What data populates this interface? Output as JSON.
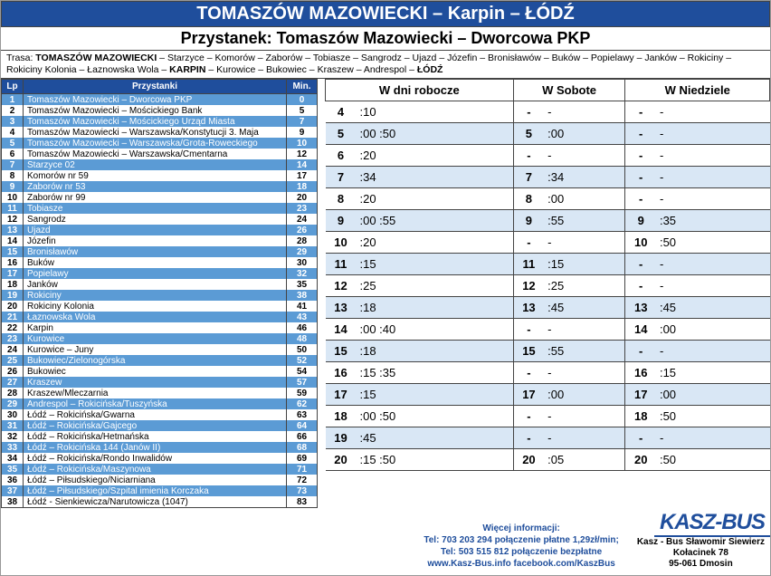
{
  "header": "TOMASZÓW MAZOWIECKI – Karpin – ŁÓDŹ",
  "stopName": "Przystanek: Tomaszów Mazowiecki – Dworcowa PKP",
  "routePrefix": "Trasa: ",
  "routeHtml": "<b>TOMASZÓW MAZOWIECKI</b> – Starzyce – Komorów – Zaborów – Tobiasze – Sangrodz – Ujazd – Józefin – Bronisławów – Buków – Popielawy – Janków – Rokiciny – Rokiciny Kolonia – Łaznowska Wola – <b>KARPIN</b> – Kurowice – Bukowiec – Kraszew – Andrespol – <b>ŁÓDŹ</b>",
  "stopsHeaders": {
    "lp": "Lp",
    "name": "Przystanki",
    "min": "Min."
  },
  "stops": [
    {
      "lp": 1,
      "name": "Tomaszów Mazowiecki – Dworcowa PKP",
      "min": 0
    },
    {
      "lp": 2,
      "name": "Tomaszów Mazowiecki – Mościckiego Bank",
      "min": 5
    },
    {
      "lp": 3,
      "name": "Tomaszów Mazowiecki – Mościckiego Urząd Miasta",
      "min": 7
    },
    {
      "lp": 4,
      "name": "Tomaszów Mazowiecki – Warszawska/Konstytucji 3. Maja",
      "min": 9
    },
    {
      "lp": 5,
      "name": "Tomaszów Mazowiecki – Warszawska/Grota-Roweckiego",
      "min": 10
    },
    {
      "lp": 6,
      "name": "Tomaszów Mazowiecki – Warszawska/Cmentarna",
      "min": 12
    },
    {
      "lp": 7,
      "name": "Starzyce 02",
      "min": 14
    },
    {
      "lp": 8,
      "name": "Komorów nr 59",
      "min": 17
    },
    {
      "lp": 9,
      "name": "Zaborów nr 53",
      "min": 18
    },
    {
      "lp": 10,
      "name": "Zaborów nr 99",
      "min": 20
    },
    {
      "lp": 11,
      "name": "Tobiasze",
      "min": 23
    },
    {
      "lp": 12,
      "name": "Sangrodz",
      "min": 24
    },
    {
      "lp": 13,
      "name": "Ujazd",
      "min": 26
    },
    {
      "lp": 14,
      "name": "Józefin",
      "min": 28
    },
    {
      "lp": 15,
      "name": "Bronisławów",
      "min": 29
    },
    {
      "lp": 16,
      "name": "Buków",
      "min": 30
    },
    {
      "lp": 17,
      "name": "Popielawy",
      "min": 32
    },
    {
      "lp": 18,
      "name": "Janków",
      "min": 35
    },
    {
      "lp": 19,
      "name": "Rokiciny",
      "min": 38
    },
    {
      "lp": 20,
      "name": "Rokiciny Kolonia",
      "min": 41
    },
    {
      "lp": 21,
      "name": "Łaznowska Wola",
      "min": 43
    },
    {
      "lp": 22,
      "name": "Karpin",
      "min": 46
    },
    {
      "lp": 23,
      "name": "Kurowice",
      "min": 48
    },
    {
      "lp": 24,
      "name": "Kurowice – Juny",
      "min": 50
    },
    {
      "lp": 25,
      "name": "Bukowiec/Zielonogórska",
      "min": 52
    },
    {
      "lp": 26,
      "name": "Bukowiec",
      "min": 54
    },
    {
      "lp": 27,
      "name": "Kraszew",
      "min": 57
    },
    {
      "lp": 28,
      "name": "Kraszew/Mleczarnia",
      "min": 59
    },
    {
      "lp": 29,
      "name": "Andrespol – Rokicińska/Tuszyńska",
      "min": 62
    },
    {
      "lp": 30,
      "name": "Łódź – Rokicińska/Gwarna",
      "min": 63
    },
    {
      "lp": 31,
      "name": "Łódź – Rokicińska/Gajcego",
      "min": 64
    },
    {
      "lp": 32,
      "name": "Łódź – Rokicińska/Hetmańska",
      "min": 66
    },
    {
      "lp": 33,
      "name": "Łódź – Rokicińska 144 (Janów II)",
      "min": 68
    },
    {
      "lp": 34,
      "name": "Łódź – Rokicińska/Rondo Inwalidów",
      "min": 69
    },
    {
      "lp": 35,
      "name": "Łódź – Rokicińska/Maszynowa",
      "min": 71
    },
    {
      "lp": 36,
      "name": "Łódź – Piłsudskiego/Niciarniana",
      "min": 72
    },
    {
      "lp": 37,
      "name": "Łódź – Piłsudskiego/Szpital imienia Korczaka",
      "min": 73
    },
    {
      "lp": 38,
      "name": "Łódź - Sienkiewicza/Narutowicza (1047)",
      "min": 83
    }
  ],
  "schedHeaders": {
    "weekday": "W dni robocze",
    "sat": "W Sobote",
    "sun": "W Niedziele"
  },
  "schedule": [
    {
      "h": 4,
      "wd": ":10",
      "sh": "-",
      "s": "-",
      "uh": "-",
      "u": "-"
    },
    {
      "h": 5,
      "wd": ":00 :50",
      "sh": "5",
      "s": ":00",
      "uh": "-",
      "u": "-"
    },
    {
      "h": 6,
      "wd": ":20",
      "sh": "-",
      "s": "-",
      "uh": "-",
      "u": "-"
    },
    {
      "h": 7,
      "wd": ":34",
      "sh": "7",
      "s": ":34",
      "uh": "-",
      "u": "-"
    },
    {
      "h": 8,
      "wd": ":20",
      "sh": "8",
      "s": ":00",
      "uh": "-",
      "u": "-"
    },
    {
      "h": 9,
      "wd": ":00 :55",
      "sh": "9",
      "s": ":55",
      "uh": "9",
      "u": ":35"
    },
    {
      "h": 10,
      "wd": ":20",
      "sh": "-",
      "s": "-",
      "uh": "10",
      "u": ":50"
    },
    {
      "h": 11,
      "wd": ":15",
      "sh": "11",
      "s": ":15",
      "uh": "-",
      "u": "-"
    },
    {
      "h": 12,
      "wd": ":25",
      "sh": "12",
      "s": ":25",
      "uh": "-",
      "u": "-"
    },
    {
      "h": 13,
      "wd": ":18",
      "sh": "13",
      "s": ":45",
      "uh": "13",
      "u": ":45"
    },
    {
      "h": 14,
      "wd": ":00 :40",
      "sh": "-",
      "s": "-",
      "uh": "14",
      "u": ":00"
    },
    {
      "h": 15,
      "wd": ":18",
      "sh": "15",
      "s": ":55",
      "uh": "-",
      "u": "-"
    },
    {
      "h": 16,
      "wd": ":15 :35",
      "sh": "-",
      "s": "-",
      "uh": "16",
      "u": ":15"
    },
    {
      "h": 17,
      "wd": ":15",
      "sh": "17",
      "s": ":00",
      "uh": "17",
      "u": ":00"
    },
    {
      "h": 18,
      "wd": ":00 :50",
      "sh": "-",
      "s": "-",
      "uh": "18",
      "u": ":50"
    },
    {
      "h": 19,
      "wd": ":45",
      "sh": "-",
      "s": "-",
      "uh": "-",
      "u": "-"
    },
    {
      "h": 20,
      "wd": ":15 :50",
      "sh": "20",
      "s": ":05",
      "uh": "20",
      "u": ":50"
    }
  ],
  "footer": {
    "more": "Więcej informacji:",
    "tel1": "Tel: 703 203 294 połączenie płatne 1,29zł/min;",
    "tel2": "Tel: 503 515 812 połączenie bezpłatne",
    "links": "www.Kasz-Bus.info     facebook.com/KaszBus",
    "logo": "KASZ-BUS",
    "company": "Kasz - Bus Sławomir Siewierz",
    "addr1": "Kołacinek 78",
    "addr2": "95-061 Dmosin"
  },
  "colors": {
    "primary": "#1f4e9c",
    "rowBlue": "#5b9bd5",
    "schedAlt": "#d9e7f5"
  }
}
